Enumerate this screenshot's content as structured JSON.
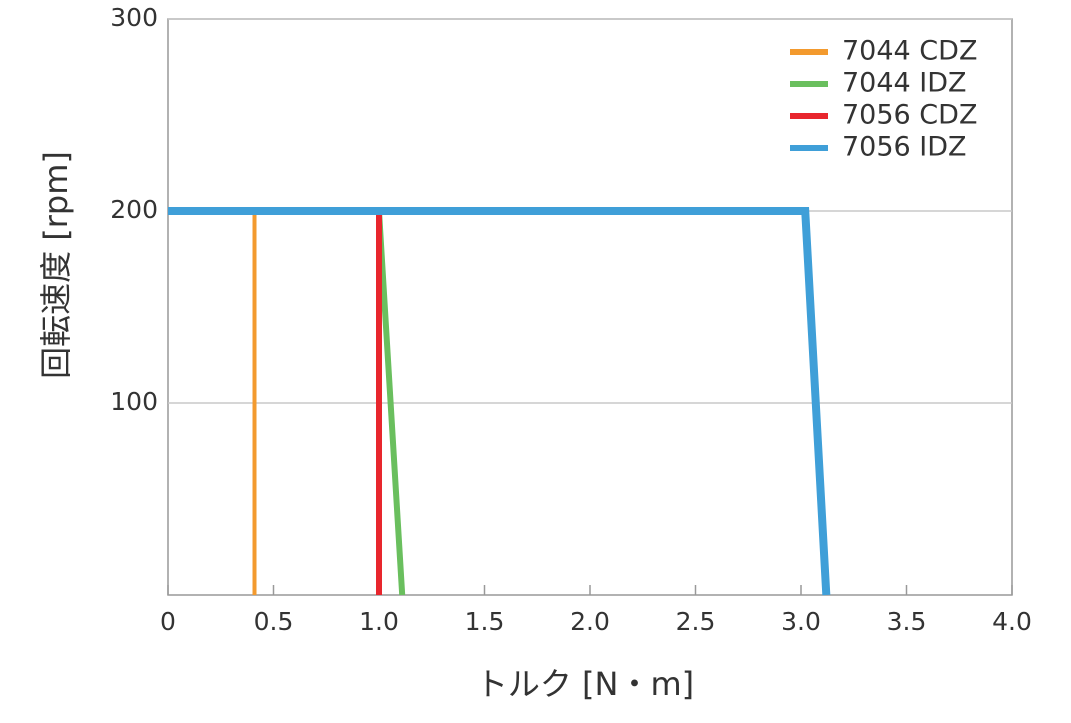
{
  "chart_data": {
    "type": "line",
    "xlabel": "トルク [N・m]",
    "ylabel": "回転速度 [rpm]",
    "xlim": [
      0,
      4
    ],
    "ylim": [
      0,
      300
    ],
    "xticks": [
      0,
      0.5,
      {
        "value": 1,
        "label": "1.0"
      },
      1.5,
      {
        "value": 2,
        "label": "2.0"
      },
      2.5,
      {
        "value": 3,
        "label": "3.0"
      },
      3.5,
      {
        "value": 4,
        "label": "4.0"
      }
    ],
    "yticks": [
      100,
      200,
      300
    ],
    "grid": true,
    "legend": "upper right",
    "series": [
      {
        "name": "7044 CDZ",
        "color": "#f39a2e",
        "width": 4,
        "x": [
          0,
          0.41,
          0.41
        ],
        "values": [
          200,
          200,
          0
        ]
      },
      {
        "name": "7044 IDZ",
        "color": "#6abf5e",
        "width": 6,
        "x": [
          0,
          1.0,
          1.11
        ],
        "values": [
          200,
          200,
          0
        ]
      },
      {
        "name": "7056 CDZ",
        "color": "#e8262d",
        "width": 6,
        "x": [
          0,
          1.0,
          1.0
        ],
        "values": [
          200,
          200,
          0
        ]
      },
      {
        "name": "7056 IDZ",
        "color": "#3f9fd8",
        "width": 8,
        "x": [
          0,
          3.02,
          3.12
        ],
        "values": [
          200,
          200,
          0
        ]
      }
    ]
  }
}
